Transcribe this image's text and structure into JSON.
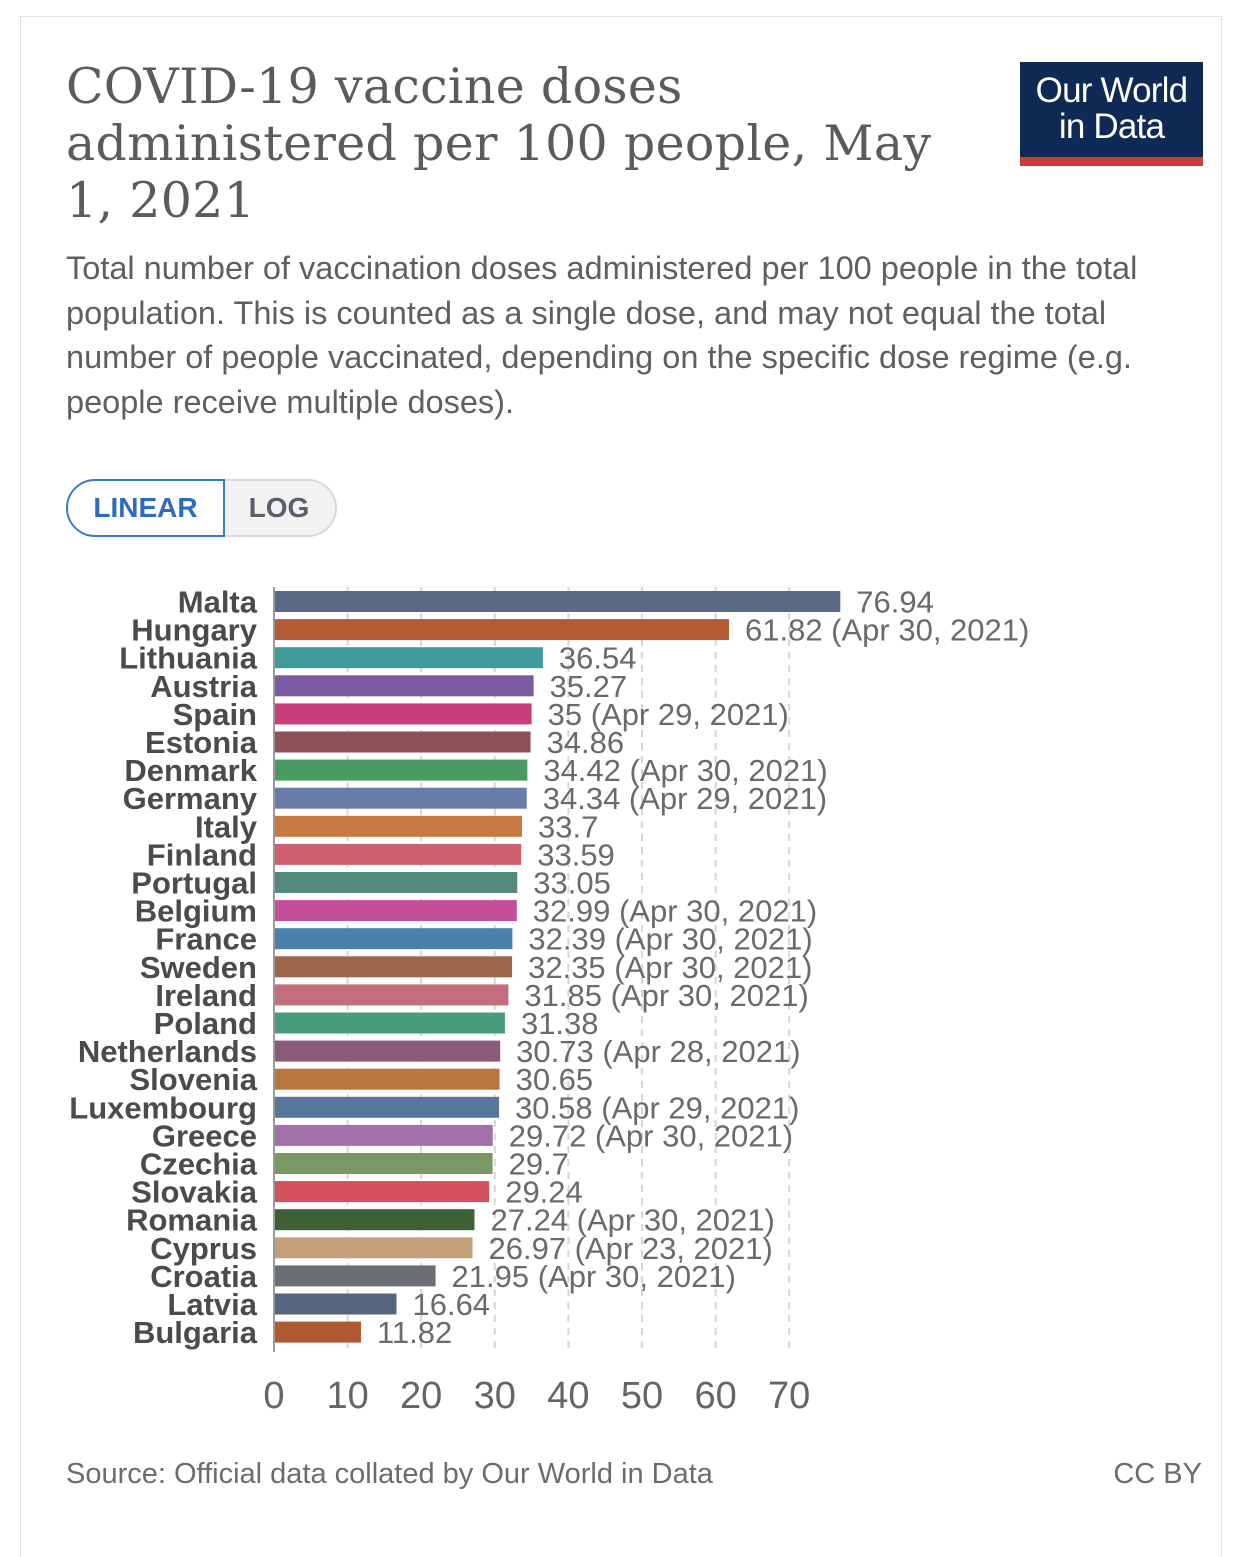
{
  "header": {
    "title": "COVID-19 vaccine doses administered per 100 people, May 1, 2021",
    "subtitle": "Total number of vaccination doses administered per 100 people in the total population. This is counted as a single dose, and may not equal the total number of people vaccinated, depending on the specific dose regime (e.g. people receive multiple doses).",
    "logo_line1": "Our World",
    "logo_line2": "in Data"
  },
  "scale_toggle": {
    "linear_label": "LINEAR",
    "log_label": "LOG",
    "selected": "LINEAR"
  },
  "footer": {
    "source": "Source: Official data collated by Our World in Data",
    "license": "CC BY"
  },
  "chart_data": {
    "type": "bar",
    "orientation": "horizontal",
    "title": "COVID-19 vaccine doses administered per 100 people, May 1, 2021",
    "xlabel": "",
    "ylabel": "",
    "xlim": [
      0,
      77
    ],
    "xticks": [
      0,
      10,
      20,
      30,
      40,
      50,
      60,
      70
    ],
    "grid": "vertical dashed",
    "categories": [
      "Malta",
      "Hungary",
      "Lithuania",
      "Austria",
      "Spain",
      "Estonia",
      "Denmark",
      "Germany",
      "Italy",
      "Finland",
      "Portugal",
      "Belgium",
      "France",
      "Sweden",
      "Ireland",
      "Poland",
      "Netherlands",
      "Slovenia",
      "Luxembourg",
      "Greece",
      "Czechia",
      "Slovakia",
      "Romania",
      "Cyprus",
      "Croatia",
      "Latvia",
      "Bulgaria"
    ],
    "values": [
      76.94,
      61.82,
      36.54,
      35.27,
      35,
      34.86,
      34.42,
      34.34,
      33.7,
      33.59,
      33.05,
      32.99,
      32.39,
      32.35,
      31.85,
      31.38,
      30.73,
      30.65,
      30.58,
      29.72,
      29.7,
      29.24,
      27.24,
      26.97,
      21.95,
      16.64,
      11.82
    ],
    "value_labels": [
      "76.94",
      "61.82 (Apr 30, 2021)",
      "36.54",
      "35.27",
      "35 (Apr 29, 2021)",
      "34.86",
      "34.42 (Apr 30, 2021)",
      "34.34 (Apr 29, 2021)",
      "33.7",
      "33.59",
      "33.05",
      "32.99 (Apr 30, 2021)",
      "32.39 (Apr 30, 2021)",
      "32.35 (Apr 30, 2021)",
      "31.85 (Apr 30, 2021)",
      "31.38",
      "30.73 (Apr 28, 2021)",
      "30.65",
      "30.58 (Apr 29, 2021)",
      "29.72 (Apr 30, 2021)",
      "29.7",
      "29.24",
      "27.24 (Apr 30, 2021)",
      "26.97 (Apr 23, 2021)",
      "21.95 (Apr 30, 2021)",
      "16.64",
      "11.82"
    ],
    "colors": [
      "#5a6a82",
      "#b45a35",
      "#3f9b9a",
      "#7b5aa0",
      "#c63f7a",
      "#8e5059",
      "#4a9a62",
      "#6a7cab",
      "#c57a42",
      "#d0606e",
      "#54897b",
      "#c44e98",
      "#4a80aa",
      "#9d6549",
      "#c36e7d",
      "#479a7a",
      "#8c5a79",
      "#b8773e",
      "#56779b",
      "#a271a9",
      "#7a9863",
      "#d3505e",
      "#3f5f35",
      "#c4a07a",
      "#6b6e74",
      "#54657d",
      "#b05a33"
    ]
  }
}
